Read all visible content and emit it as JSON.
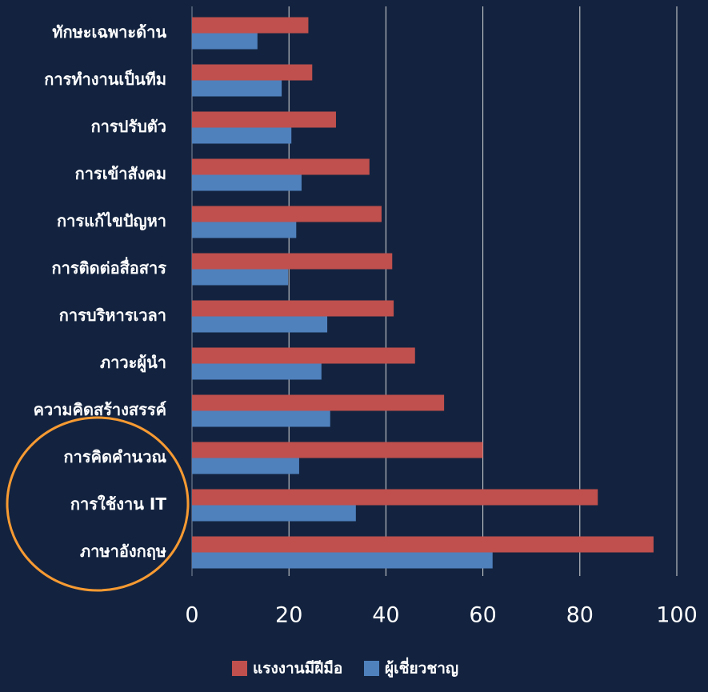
{
  "chart_data": {
    "type": "bar",
    "orientation": "horizontal",
    "categories": [
      "ทักษะเฉพาะด้าน",
      "การทำงานเป็นทีม",
      "การปรับตัว",
      "การเข้าสังคม",
      "การแก้ไขปัญหา",
      "การติดต่อสื่อสาร",
      "การบริหารเวลา",
      "ภาวะผู้นำ",
      "ความคิดสร้างสรรค์",
      "การคิดคำนวณ",
      "การใช้งาน IT",
      "ภาษาอังกฤษ"
    ],
    "series": [
      {
        "name": "แรงงานมีฝีมือ",
        "color": "#c0504d",
        "values": [
          24,
          24.8,
          29.7,
          36.6,
          39.1,
          41.3,
          41.6,
          46,
          52,
          60,
          83.7,
          95.2
        ]
      },
      {
        "name": "ผู้เชี่ยวชาญ",
        "color": "#4f81bd",
        "values": [
          13.5,
          18.5,
          20.5,
          22.6,
          21.5,
          19.8,
          27.9,
          26.7,
          28.5,
          22.1,
          33.8,
          62
        ]
      }
    ],
    "xlim": [
      0,
      100
    ],
    "xticks": [
      0,
      20,
      40,
      60,
      80,
      100
    ],
    "grid": true,
    "legend": "bottom"
  }
}
